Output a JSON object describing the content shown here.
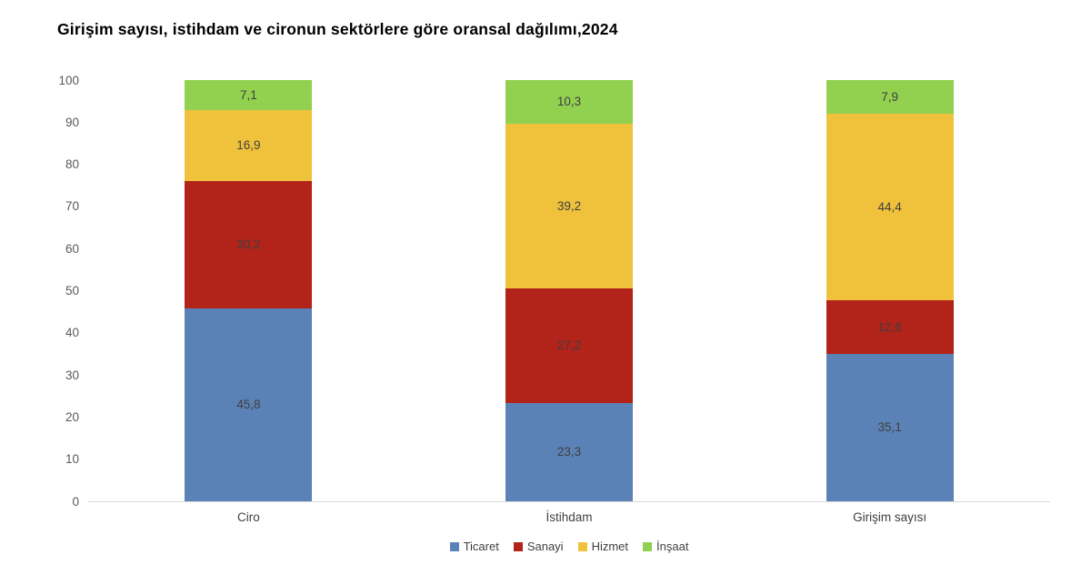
{
  "title": "Girişim sayısı, istihdam ve cironun sektörlere göre oransal dağılımı,2024",
  "chart_data": {
    "type": "bar",
    "stacked": true,
    "title": "Girişim sayısı, istihdam ve cironun sektörlere göre oransal dağılımı,2024",
    "categories": [
      "Ciro",
      "İstihdam",
      "Girişim sayısı"
    ],
    "series": [
      {
        "name": "Ticaret",
        "color": "#5b82b6",
        "values": [
          45.8,
          23.3,
          35.1
        ],
        "labels": [
          "45,8",
          "23,3",
          "35,1"
        ]
      },
      {
        "name": "Sanayi",
        "color": "#b2231a",
        "values": [
          30.2,
          27.2,
          12.6
        ],
        "labels": [
          "30,2",
          "27,2",
          "12,6"
        ]
      },
      {
        "name": "Hizmet",
        "color": "#f0c23c",
        "values": [
          16.9,
          39.2,
          44.4
        ],
        "labels": [
          "16,9",
          "39,2",
          "44,4"
        ]
      },
      {
        "name": "İnşaat",
        "color": "#92d04f",
        "values": [
          7.1,
          10.3,
          7.9
        ],
        "labels": [
          "7,1",
          "10,3",
          "7,9"
        ]
      }
    ],
    "xlabel": "",
    "ylabel": "",
    "ylim": [
      0,
      100
    ],
    "yticks": [
      0,
      10,
      20,
      30,
      40,
      50,
      60,
      70,
      80,
      90,
      100
    ],
    "grid": false,
    "legend_position": "bottom",
    "colors": {
      "segment_label": "#3f3f3f",
      "axis_tick_label": "#595959",
      "baseline": "#d9d9d9"
    }
  }
}
